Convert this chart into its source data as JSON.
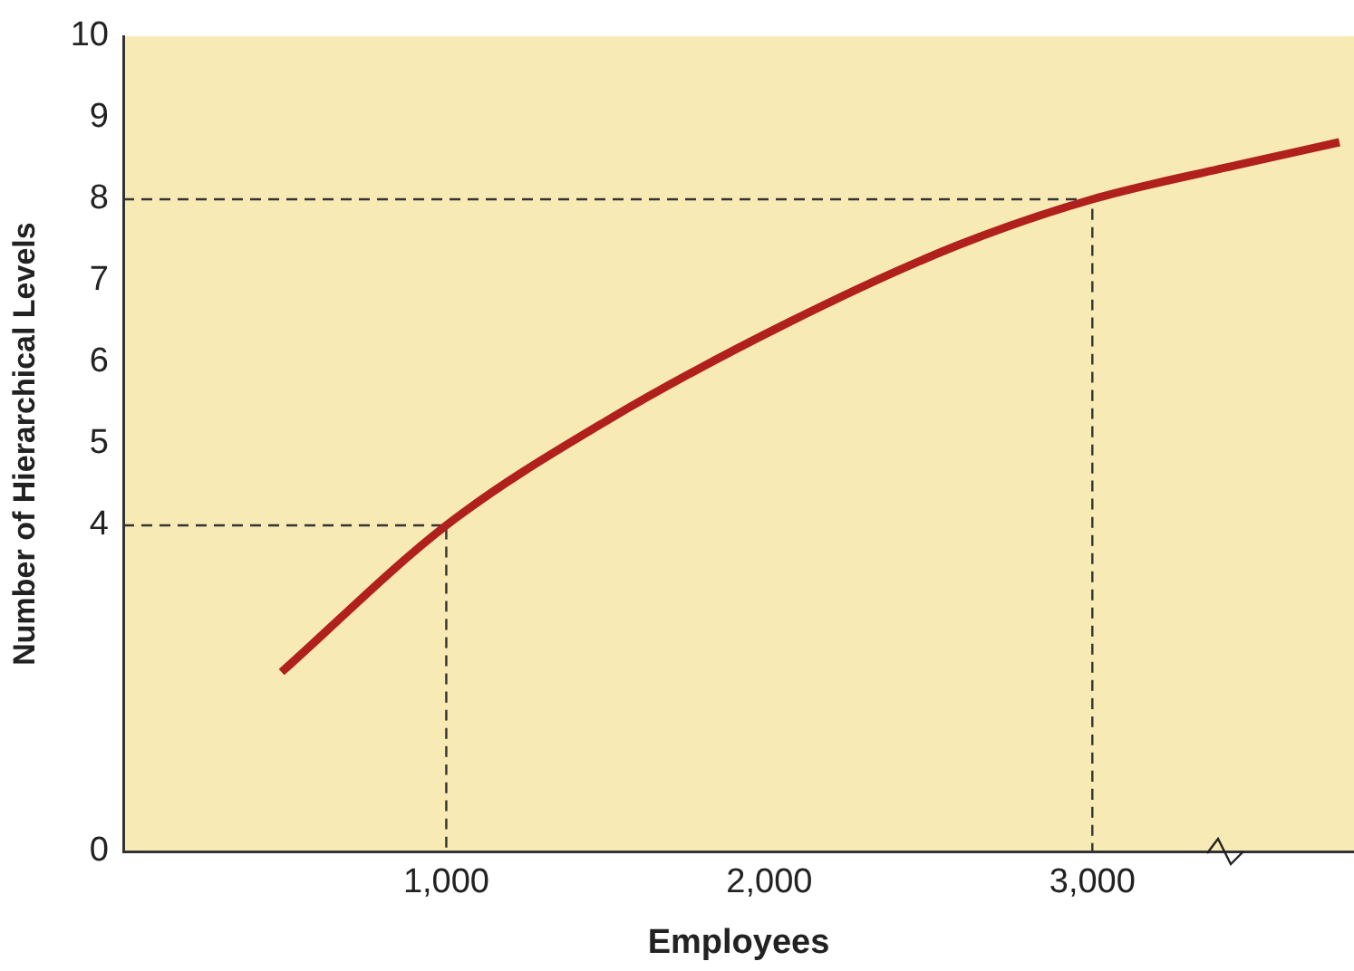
{
  "chart_data": {
    "type": "line",
    "xlabel": "Employees",
    "ylabel": "Number of Hierarchical Levels",
    "xlim": [
      0,
      3810
    ],
    "ylim": [
      0,
      10
    ],
    "xticks": [
      {
        "value": 1000,
        "label": "1,000"
      },
      {
        "value": 2000,
        "label": "2,000"
      },
      {
        "value": 3000,
        "label": "3,000"
      }
    ],
    "yticks": [
      0,
      4,
      5,
      6,
      7,
      8,
      9,
      10
    ],
    "grid": false,
    "legend": false,
    "marker": "none",
    "series": [
      {
        "color": "#b0201c",
        "line_style": "solid",
        "x": [
          490,
          1000,
          1495,
          2060,
          2580,
          3000,
          3449,
          3765
        ],
        "values": [
          2.2,
          4,
          5.28,
          6.49,
          7.43,
          8,
          8.42,
          8.7
        ]
      },
      {
        "color": "#333333",
        "line_style": "dashed",
        "x": [
          0,
          1000,
          1000
        ],
        "values": [
          4,
          4,
          0
        ]
      },
      {
        "color": "#333333",
        "line_style": "dashed",
        "x": [
          0,
          3000,
          3000
        ],
        "values": [
          8,
          8,
          0
        ]
      }
    ]
  }
}
